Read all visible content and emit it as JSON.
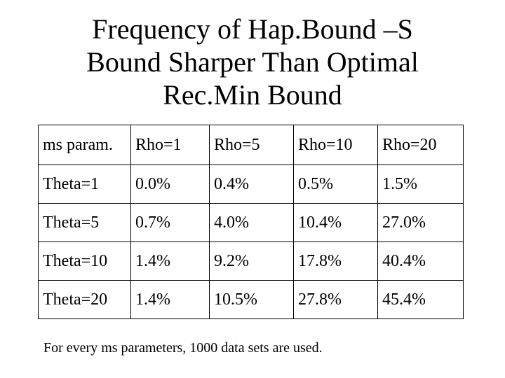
{
  "title": {
    "lines": [
      "Frequency of Hap.Bound –S",
      "Bound Sharper Than Optimal",
      "Rec.Min Bound"
    ]
  },
  "table": {
    "header": [
      "ms param.",
      "Rho=1",
      "Rho=5",
      "Rho=10",
      "Rho=20"
    ],
    "rows": [
      [
        "Theta=1",
        "0.0%",
        "0.4%",
        "0.5%",
        "1.5%"
      ],
      [
        "Theta=5",
        "0.7%",
        "4.0%",
        "10.4%",
        "27.0%"
      ],
      [
        "Theta=10",
        "1.4%",
        "9.2%",
        "17.8%",
        "40.4%"
      ],
      [
        "Theta=20",
        "1.4%",
        "10.5%",
        "27.8%",
        "45.4%"
      ]
    ]
  },
  "footnote": "For every ms parameters, 1000 data sets are used."
}
